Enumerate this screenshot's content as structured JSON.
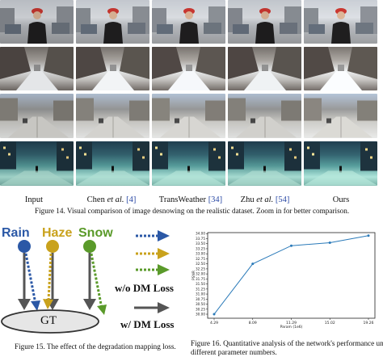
{
  "fig14": {
    "columns": [
      {
        "pre": "Input",
        "em": "",
        "ref": ""
      },
      {
        "pre": "Chen ",
        "em": "et al.",
        "ref": " [4]"
      },
      {
        "pre": "TransWeather ",
        "em": "",
        "ref": "[34]"
      },
      {
        "pre": "Zhu ",
        "em": "et al.",
        "ref": " [54]"
      },
      {
        "pre": "Ours",
        "em": "",
        "ref": ""
      }
    ],
    "caption": "Figure 14. Visual comparison of image desnowing on the realistic dataset. Zoom in for better comparison."
  },
  "fig15": {
    "rain": "Rain",
    "haze": "Haze",
    "snow": "Snow",
    "gt": "GT",
    "wo_label": "w/o DM Loss",
    "w_label": "w/ DM Loss",
    "colors": {
      "rain": "#2b58a6",
      "haze": "#c9a21c",
      "snow": "#5a9a2a",
      "gray": "#555555"
    },
    "caption": "Figure 15. The effect of the degradation mapping loss."
  },
  "fig16": {
    "caption_line1": "Figure 16. Quantitative analysis of the network's performance under",
    "caption_line2": "different parameter numbers."
  },
  "chart_data": {
    "type": "line",
    "title": "",
    "xlabel": "Param (1e6)",
    "ylabel": "PSNR",
    "x": [
      "4.29",
      "8.09",
      "11.29",
      "15.02",
      "19.26"
    ],
    "y": [
      30.0,
      32.5,
      33.4,
      33.55,
      33.9
    ],
    "ylim": [
      29.8,
      34.05
    ],
    "yticks": [
      "30.00",
      "30.25",
      "30.50",
      "30.75",
      "31.00",
      "31.25",
      "31.50",
      "31.75",
      "32.00",
      "32.25",
      "32.50",
      "32.75",
      "33.00",
      "33.25",
      "33.50",
      "33.75",
      "34.00"
    ],
    "grid": false,
    "color": "#2a7ab9"
  }
}
